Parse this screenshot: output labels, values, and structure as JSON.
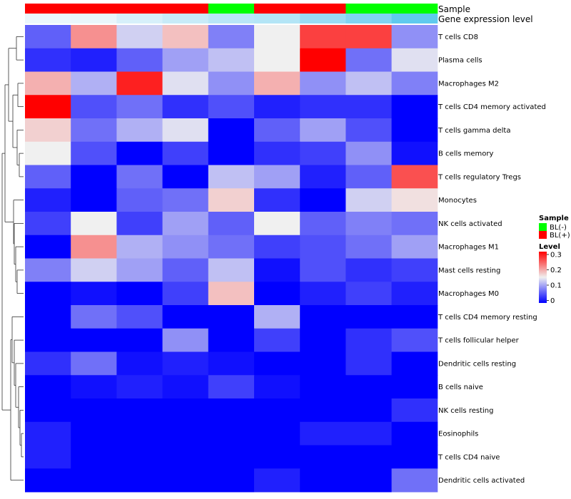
{
  "chart_data": {
    "type": "heatmap",
    "annotation_titles": {
      "sample": "Sample",
      "expression": "Gene expression level"
    },
    "columns": [
      {
        "sample": "BL(+)",
        "expression_level": 0.02
      },
      {
        "sample": "BL(+)",
        "expression_level": 0.03
      },
      {
        "sample": "BL(+)",
        "expression_level": 0.1
      },
      {
        "sample": "BL(+)",
        "expression_level": 0.16
      },
      {
        "sample": "BL(-)",
        "expression_level": 0.22
      },
      {
        "sample": "BL(+)",
        "expression_level": 0.24
      },
      {
        "sample": "BL(+)",
        "expression_level": 0.35
      },
      {
        "sample": "BL(-)",
        "expression_level": 0.45
      },
      {
        "sample": "BL(-)",
        "expression_level": 0.58
      }
    ],
    "rows": [
      "T cells CD8",
      "Plasma cells",
      "Macrophages M2",
      "T cells CD4 memory activated",
      "T cells gamma delta",
      "B cells memory",
      "T cells regulatory  Tregs",
      "Monocytes",
      "NK cells activated",
      "Macrophages M1",
      "Mast cells resting",
      "Macrophages M0",
      "T cells CD4 memory resting",
      "T cells follicular helper",
      "Dendritic cells resting",
      "B cells naive",
      "NK cells resting",
      "Eosinophils",
      "T cells CD4 naive",
      "Dendritic cells activated"
    ],
    "values": [
      [
        0.06,
        0.21,
        0.13,
        0.18,
        0.08,
        0.15,
        0.26,
        0.26,
        0.09
      ],
      [
        0.03,
        0.02,
        0.06,
        0.1,
        0.12,
        0.15,
        0.3,
        0.07,
        0.14
      ],
      [
        0.19,
        0.11,
        0.28,
        0.14,
        0.09,
        0.19,
        0.09,
        0.12,
        0.08
      ],
      [
        0.3,
        0.05,
        0.07,
        0.03,
        0.05,
        0.02,
        0.03,
        0.03,
        0.0
      ],
      [
        0.17,
        0.07,
        0.11,
        0.14,
        0.0,
        0.06,
        0.1,
        0.05,
        0.0
      ],
      [
        0.15,
        0.05,
        0.0,
        0.04,
        0.0,
        0.03,
        0.04,
        0.09,
        0.01
      ],
      [
        0.06,
        0.0,
        0.07,
        0.0,
        0.12,
        0.1,
        0.02,
        0.06,
        0.25
      ],
      [
        0.02,
        0.0,
        0.06,
        0.07,
        0.17,
        0.03,
        0.0,
        0.13,
        0.16
      ],
      [
        0.04,
        0.15,
        0.04,
        0.1,
        0.06,
        0.15,
        0.06,
        0.08,
        0.07
      ],
      [
        0.0,
        0.21,
        0.11,
        0.09,
        0.07,
        0.04,
        0.05,
        0.07,
        0.1
      ],
      [
        0.08,
        0.13,
        0.1,
        0.06,
        0.12,
        0.01,
        0.05,
        0.03,
        0.04
      ],
      [
        0.0,
        0.01,
        0.0,
        0.04,
        0.18,
        0.0,
        0.02,
        0.04,
        0.02
      ],
      [
        0.0,
        0.07,
        0.05,
        0.0,
        0.0,
        0.11,
        0.0,
        0.0,
        0.0
      ],
      [
        0.0,
        0.0,
        0.0,
        0.09,
        0.0,
        0.04,
        0.0,
        0.03,
        0.05
      ],
      [
        0.03,
        0.07,
        0.01,
        0.02,
        0.01,
        0.0,
        0.0,
        0.03,
        0.0
      ],
      [
        0.0,
        0.01,
        0.02,
        0.01,
        0.04,
        0.01,
        0.0,
        0.0,
        0.0
      ],
      [
        0.0,
        0.0,
        0.0,
        0.0,
        0.0,
        0.0,
        0.0,
        0.0,
        0.03
      ],
      [
        0.02,
        0.0,
        0.0,
        0.0,
        0.0,
        0.0,
        0.02,
        0.02,
        0.0
      ],
      [
        0.02,
        0.0,
        0.0,
        0.0,
        0.0,
        0.0,
        0.0,
        0.0,
        0.0
      ],
      [
        0.0,
        0.0,
        0.0,
        0.0,
        0.0,
        0.02,
        0.0,
        0.0,
        0.07
      ]
    ],
    "value_range": [
      0,
      0.3
    ],
    "color_scale": {
      "low": "#0000ff",
      "mid": "#f0f0f0",
      "high": "#ff0000",
      "mid_value": 0.15
    },
    "expression_color_scale": {
      "low": "#f0f8fc",
      "high": "#5bc8ee"
    },
    "row_dendrogram": true,
    "legend": {
      "position": "right",
      "sample_title": "Sample",
      "sample_entries": [
        {
          "label": "BL(-)",
          "color": "#00ff00"
        },
        {
          "label": "BL(+)",
          "color": "#ff0000"
        }
      ],
      "level_title": "Level",
      "level_ticks": [
        "0.3",
        "0.2",
        "0.1",
        "0"
      ]
    }
  }
}
